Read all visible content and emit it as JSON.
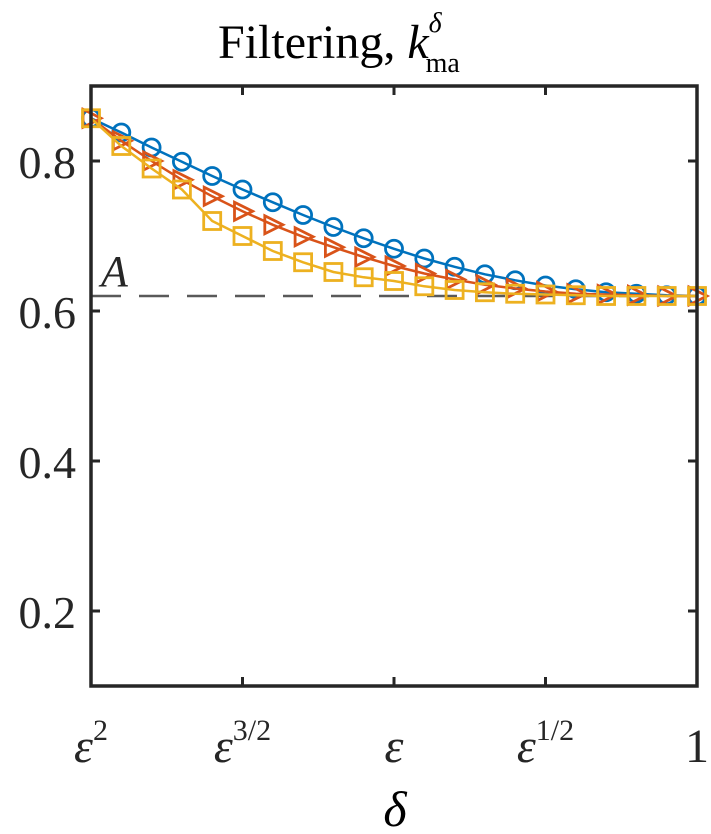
{
  "chart_data": {
    "type": "line",
    "title": "Filtering, ",
    "title_math": {
      "base": "k",
      "sup": "δ",
      "sub": "ma"
    },
    "xlabel": "δ",
    "ylabel": "",
    "ylim": [
      0.1,
      0.9
    ],
    "xlim": [
      0,
      1
    ],
    "x_ticks": [
      {
        "pos": 0.0,
        "base": "ε",
        "sup": "2"
      },
      {
        "pos": 0.25,
        "base": "ε",
        "sup": "3/2"
      },
      {
        "pos": 0.5,
        "base": "ε",
        "sup": ""
      },
      {
        "pos": 0.75,
        "base": "ε",
        "sup": "1/2"
      },
      {
        "pos": 1.0,
        "base": "1",
        "sup": ""
      }
    ],
    "y_ticks": [
      {
        "value": 0.2,
        "label": "0.2"
      },
      {
        "value": 0.4,
        "label": "0.4"
      },
      {
        "value": 0.6,
        "label": "0.6"
      },
      {
        "value": 0.8,
        "label": "0.8"
      }
    ],
    "reference_line": {
      "value": 0.62,
      "label": "A",
      "color": "#595959"
    },
    "x": [
      0.0,
      0.05,
      0.1,
      0.15,
      0.2,
      0.25,
      0.3,
      0.35,
      0.4,
      0.45,
      0.5,
      0.55,
      0.6,
      0.65,
      0.7,
      0.75,
      0.8,
      0.85,
      0.9,
      0.95,
      1.0
    ],
    "series": [
      {
        "color": "#0072BD",
        "marker": "circle",
        "values": [
          0.857,
          0.838,
          0.818,
          0.799,
          0.78,
          0.762,
          0.745,
          0.728,
          0.712,
          0.697,
          0.683,
          0.67,
          0.659,
          0.649,
          0.641,
          0.634,
          0.629,
          0.625,
          0.623,
          0.621,
          0.62
        ]
      },
      {
        "color": "#D95319",
        "marker": "triangle-right",
        "values": [
          0.857,
          0.827,
          0.8,
          0.775,
          0.753,
          0.733,
          0.715,
          0.699,
          0.685,
          0.672,
          0.66,
          0.65,
          0.642,
          0.635,
          0.63,
          0.626,
          0.623,
          0.622,
          0.621,
          0.62,
          0.62
        ]
      },
      {
        "color": "#EDB120",
        "marker": "square",
        "values": [
          0.857,
          0.82,
          0.79,
          0.762,
          0.72,
          0.7,
          0.68,
          0.665,
          0.652,
          0.645,
          0.64,
          0.633,
          0.628,
          0.625,
          0.623,
          0.622,
          0.621,
          0.62,
          0.62,
          0.62,
          0.62
        ]
      }
    ],
    "grid": false,
    "box": true
  }
}
